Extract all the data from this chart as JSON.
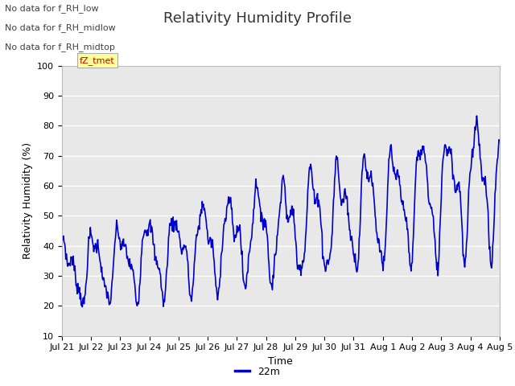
{
  "title": "Relativity Humidity Profile",
  "ylabel": "Relativity Humidity (%)",
  "xlabel": "Time",
  "legend_label": "22m",
  "ylim": [
    10,
    100
  ],
  "yticks": [
    10,
    20,
    30,
    40,
    50,
    60,
    70,
    80,
    90,
    100
  ],
  "line_color": "#0000cc",
  "line_width": 1.2,
  "bg_color": "#ffffff",
  "plot_bg_color": "#e8e8e8",
  "grid_color": "#ffffff",
  "annotations": [
    "No data for f_RH_low",
    "No data for f_RH_midlow",
    "No data for f_RH_midtop"
  ],
  "annotation_color": "#404040",
  "fz_tmet_color": "#cc0000",
  "fz_tmet_bg": "#ffff99",
  "x_tick_labels": [
    "Jul 21",
    "Jul 22",
    "Jul 23",
    "Jul 24",
    "Jul 25",
    "Jul 26",
    "Jul 27",
    "Jul 28",
    "Jul 29",
    "Jul 30",
    "Jul 31",
    "Aug 1",
    "Aug 2",
    "Aug 3",
    "Aug 4",
    "Aug 5"
  ],
  "title_fontsize": 13,
  "axis_label_fontsize": 9,
  "tick_fontsize": 8,
  "annotation_fontsize": 8
}
